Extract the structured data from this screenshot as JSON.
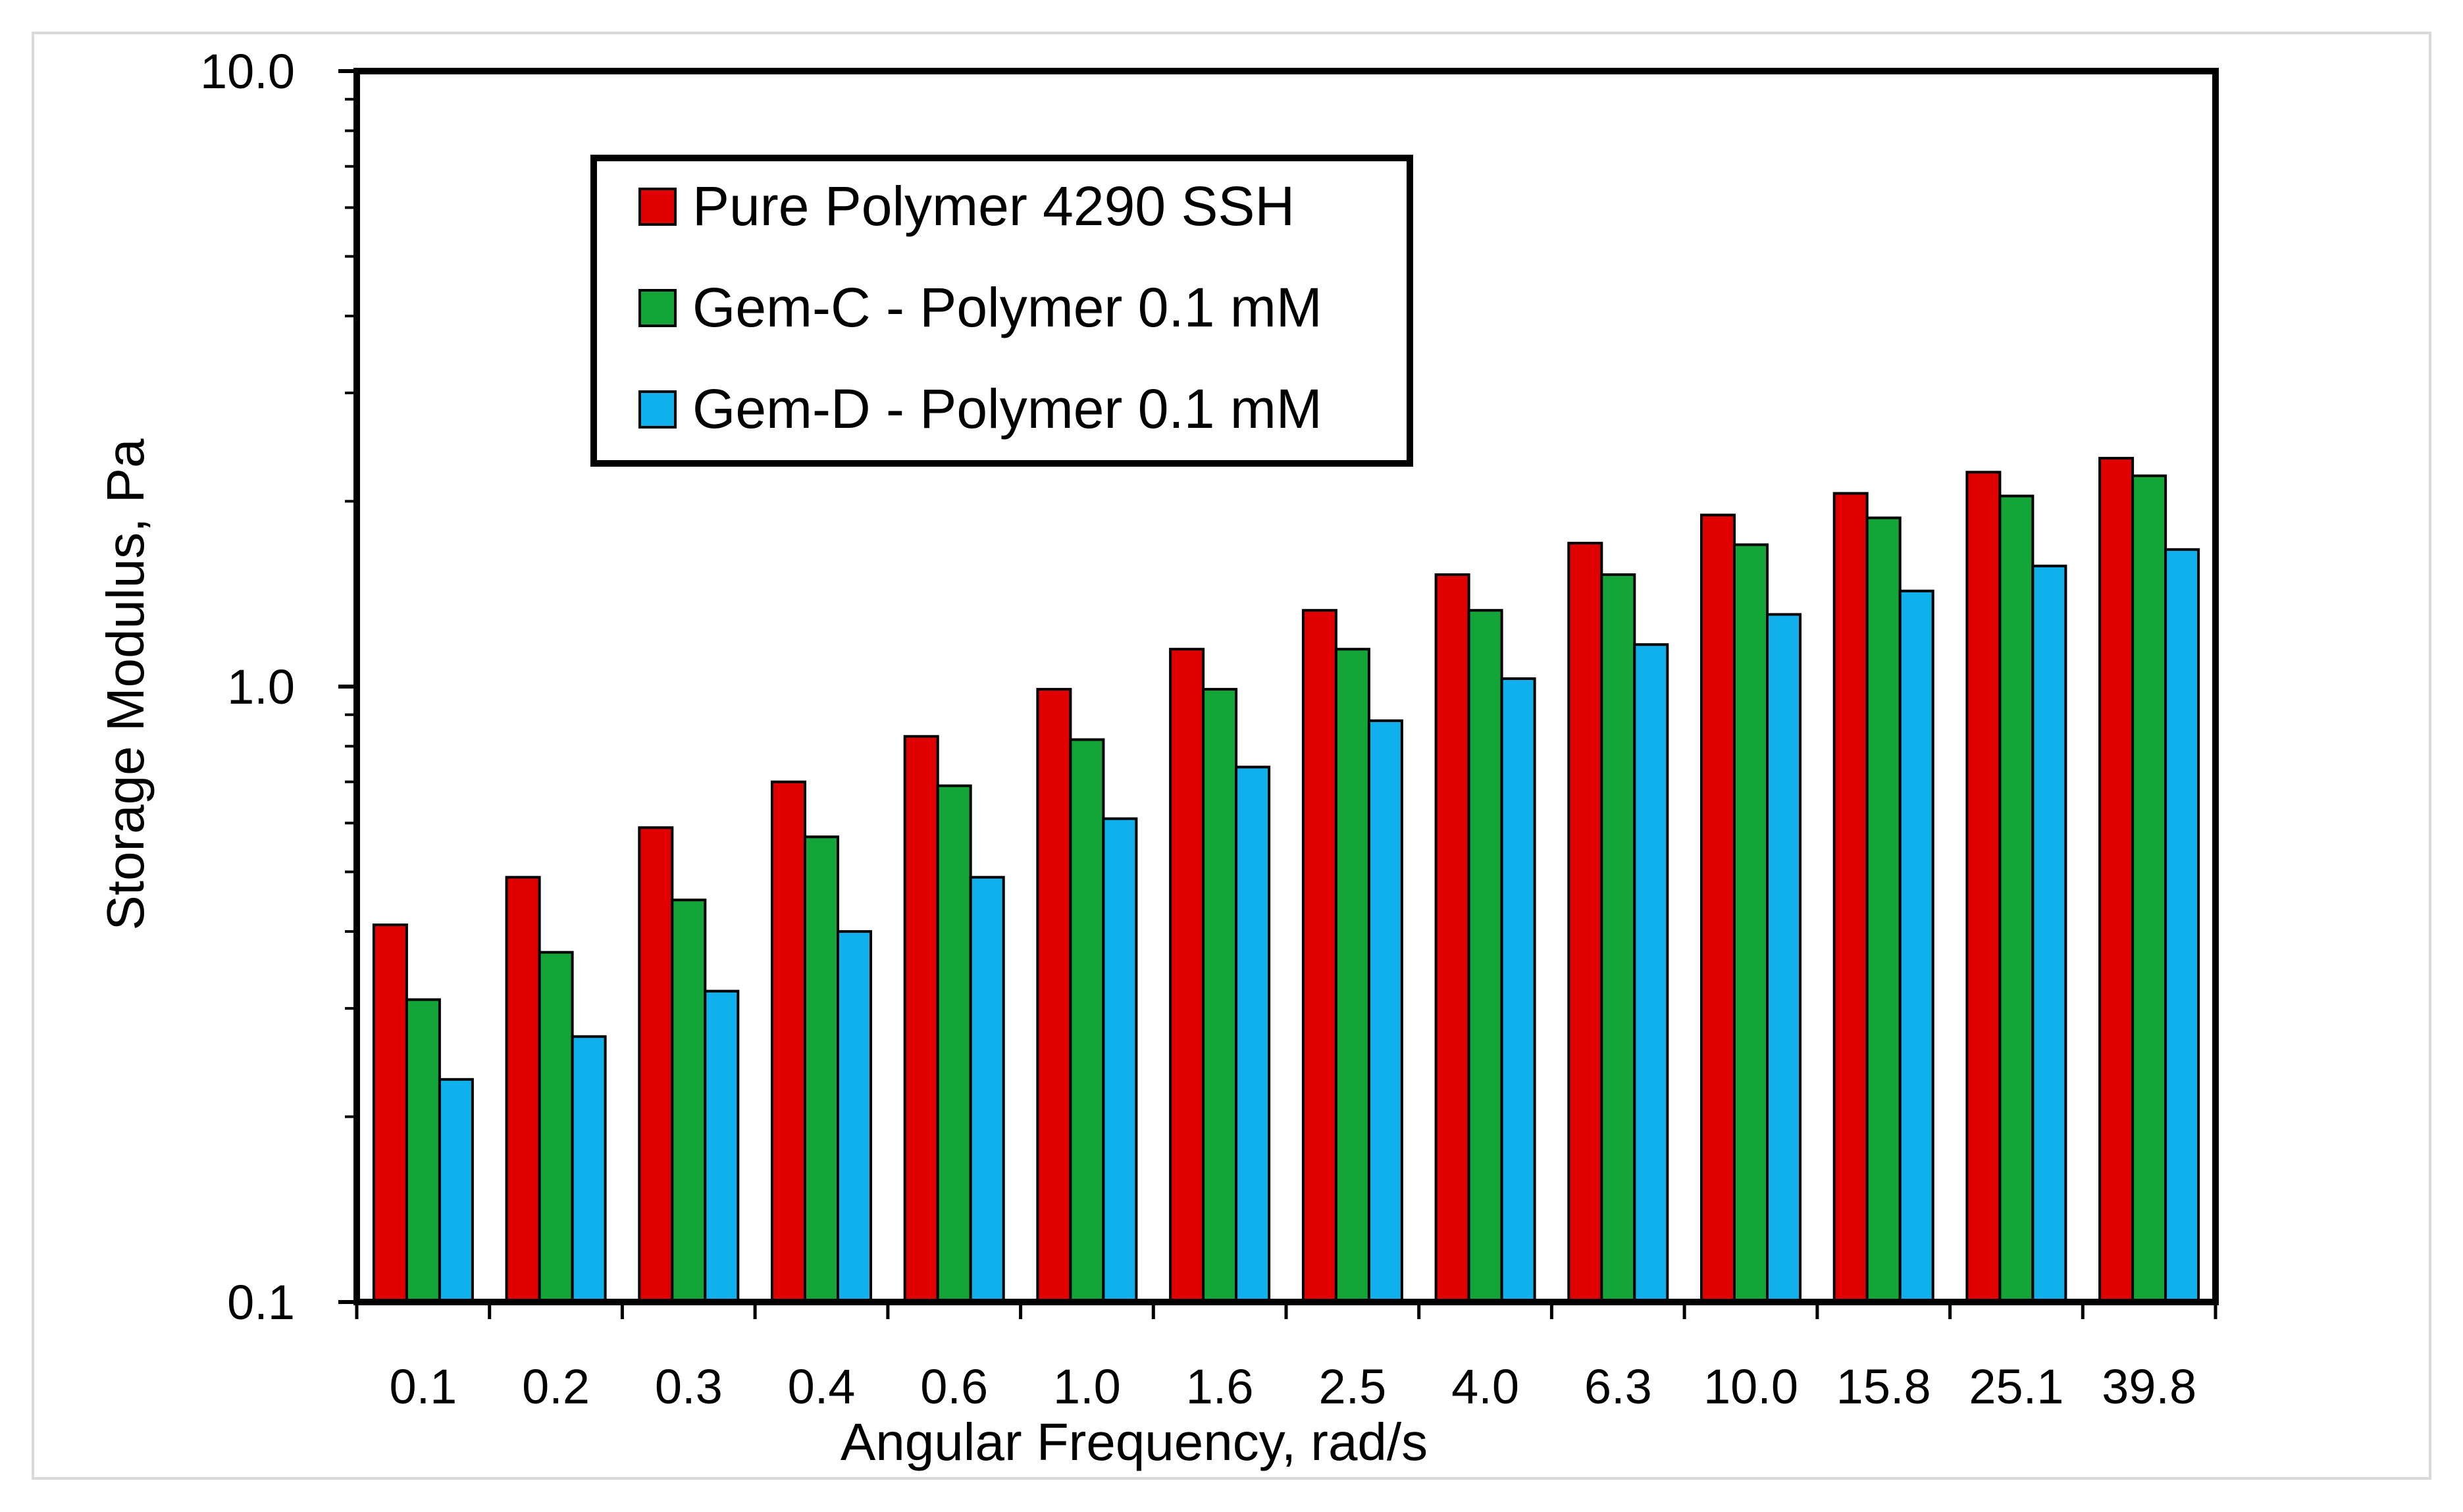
{
  "chart_data": {
    "type": "bar",
    "xlabel": "Angular Frequency, rad/s",
    "ylabel": "Storage Modulus, Pa",
    "yscale": "log",
    "ylim": [
      0.1,
      10.0
    ],
    "ytick_labels": [
      "10.0",
      "1.0",
      "0.1"
    ],
    "ytick_values": [
      10.0,
      1.0,
      0.1
    ],
    "grid": false,
    "legend_position": "top-left",
    "categories": [
      "0.1",
      "0.2",
      "0.3",
      "0.4",
      "0.6",
      "1.0",
      "1.6",
      "2.5",
      "4.0",
      "6.3",
      "10.0",
      "15.8",
      "25.1",
      "39.8"
    ],
    "series": [
      {
        "name": "Pure Polymer 4290 SSH",
        "color": "#e00000",
        "values": [
          0.41,
          0.49,
          0.59,
          0.7,
          0.83,
          0.99,
          1.15,
          1.33,
          1.52,
          1.71,
          1.9,
          2.06,
          2.23,
          2.35
        ]
      },
      {
        "name": "Gem-C - Polymer 0.1 mM",
        "color": "#13a538",
        "values": [
          0.31,
          0.37,
          0.45,
          0.57,
          0.69,
          0.82,
          0.99,
          1.15,
          1.33,
          1.52,
          1.7,
          1.88,
          2.04,
          2.2
        ]
      },
      {
        "name": "Gem-D - Polymer 0.1 mM",
        "color": "#0fb0eb",
        "values": [
          0.23,
          0.27,
          0.32,
          0.4,
          0.49,
          0.61,
          0.74,
          0.88,
          1.03,
          1.17,
          1.31,
          1.43,
          1.57,
          1.67
        ]
      }
    ]
  }
}
